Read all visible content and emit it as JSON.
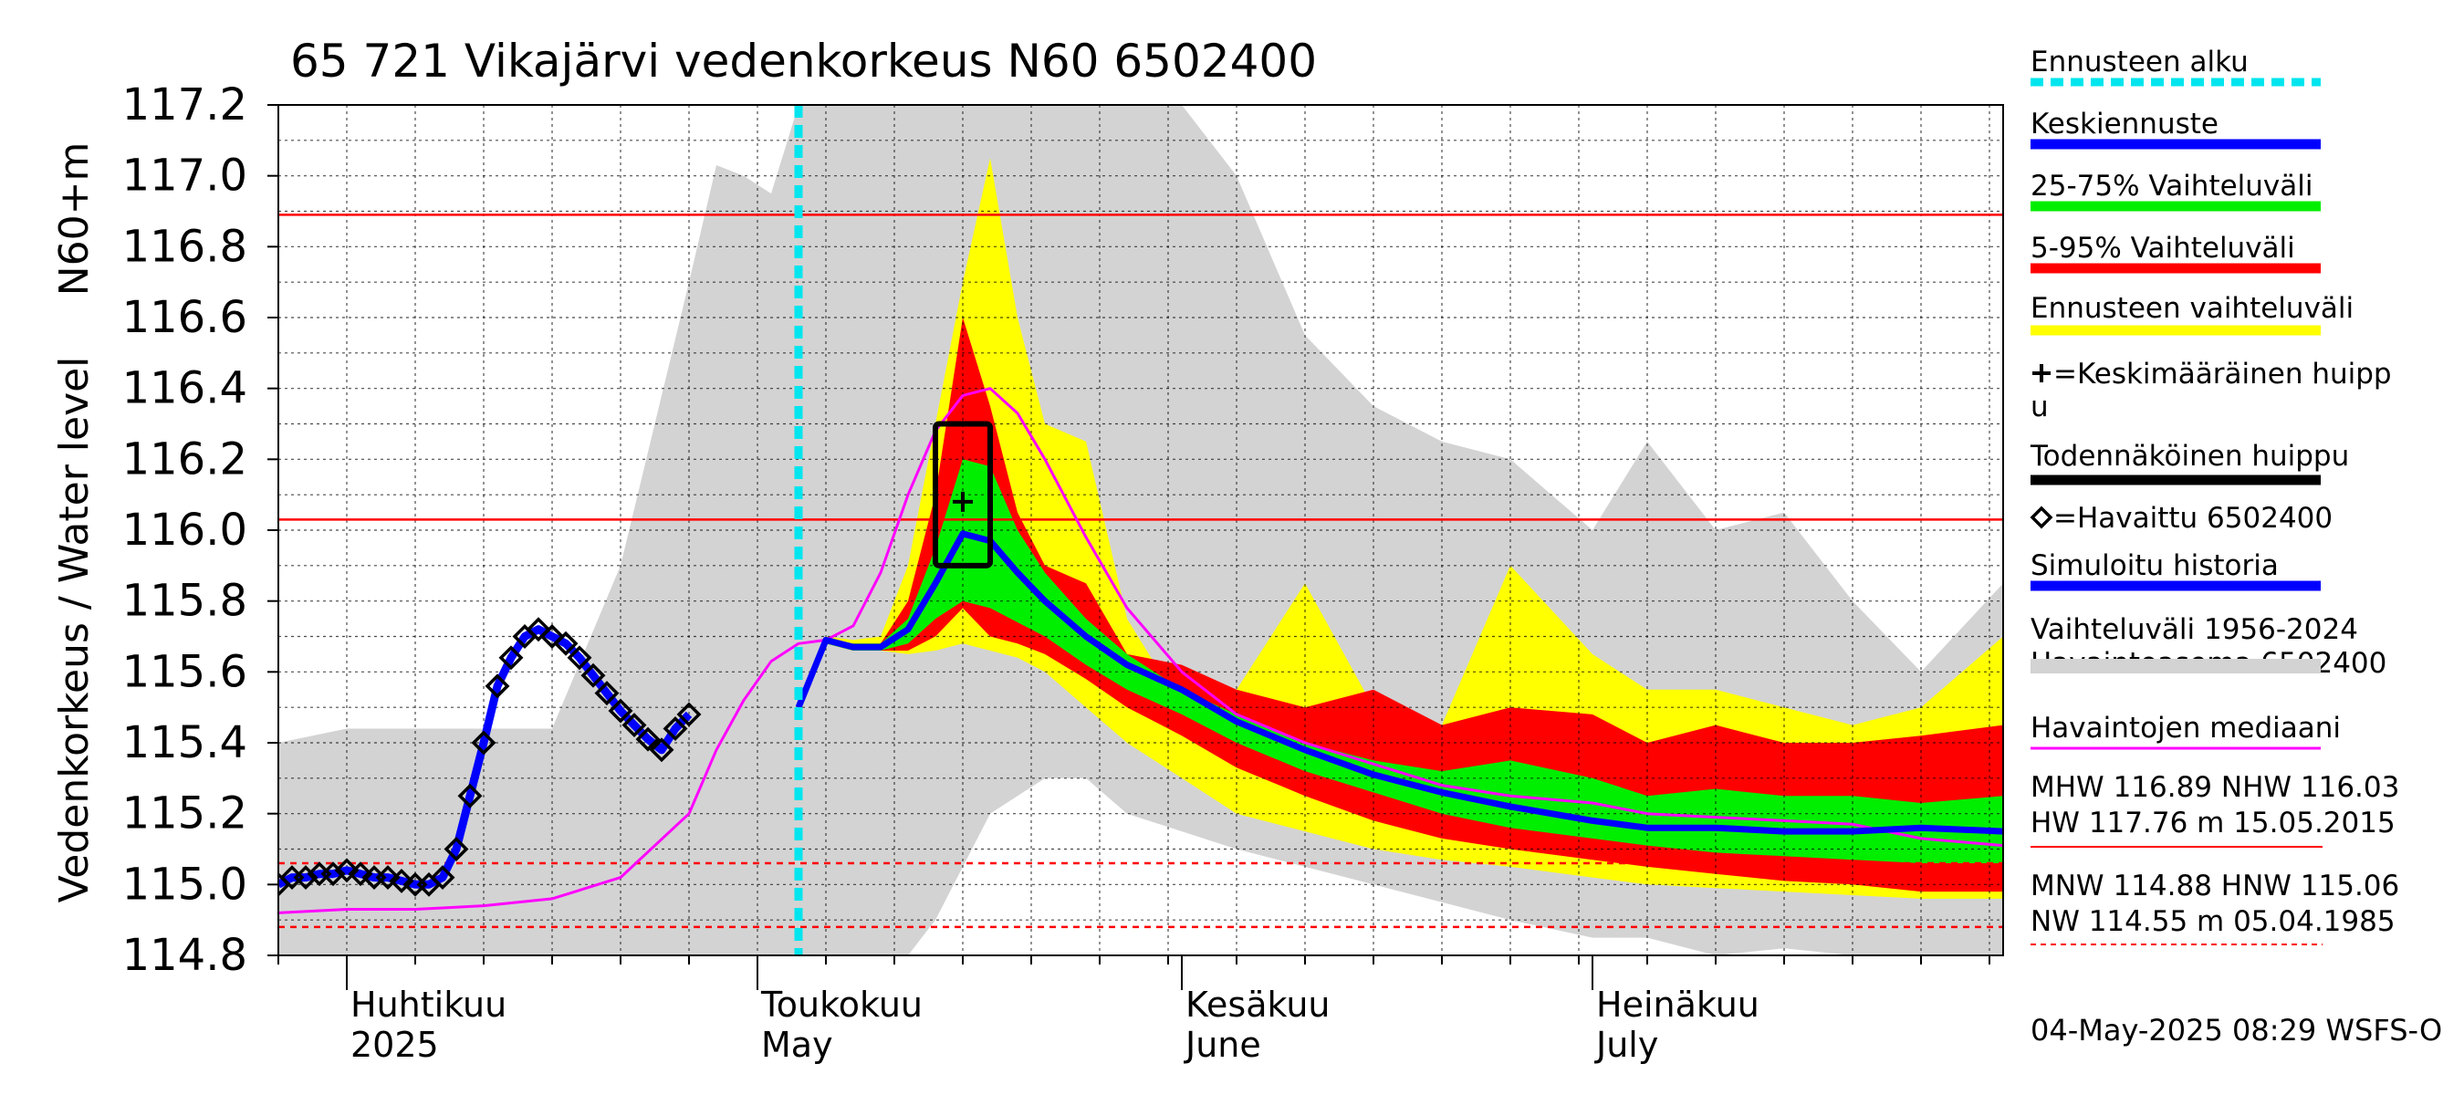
{
  "chart_data": {
    "type": "area",
    "title": "65 721 Vikajärvi vedenkorkeus N60 6502400",
    "ylabel_fi": "Vedenkorkeus / Water level",
    "ylabel_unit": "N60+m",
    "ylim": [
      114.8,
      117.2
    ],
    "y_ticks": [
      "114.8",
      "115.0",
      "115.2",
      "115.4",
      "115.6",
      "115.8",
      "116.0",
      "116.2",
      "116.4",
      "116.6",
      "116.8",
      "117.0",
      "117.2"
    ],
    "x_range": [
      "2025-03-27",
      "2025-07-31"
    ],
    "month_labels": [
      {
        "date": "2025-04-01",
        "fi": "Huhtikuu",
        "en": "2025"
      },
      {
        "date": "2025-05-01",
        "fi": "Toukokuu",
        "en": "May"
      },
      {
        "date": "2025-06-01",
        "fi": "Kesäkuu",
        "en": "June"
      },
      {
        "date": "2025-07-01",
        "fi": "Heinäkuu",
        "en": "July"
      }
    ],
    "forecast_start": "2025-05-04",
    "reference_lines": [
      {
        "name": "MHW",
        "value": 116.89,
        "style": "solid"
      },
      {
        "name": "NHW",
        "value": 116.03,
        "style": "solid"
      },
      {
        "name": "HNW",
        "value": 115.06,
        "style": "dashed"
      },
      {
        "name": "MNW",
        "value": 114.88,
        "style": "dashed"
      }
    ],
    "x_dates": [
      "2025-03-27",
      "2025-04-01",
      "2025-04-06",
      "2025-04-11",
      "2025-04-16",
      "2025-04-21",
      "2025-04-26",
      "2025-04-28",
      "2025-04-30",
      "2025-05-02",
      "2025-05-04",
      "2025-05-06",
      "2025-05-08",
      "2025-05-10",
      "2025-05-12",
      "2025-05-14",
      "2025-05-16",
      "2025-05-18",
      "2025-05-20",
      "2025-05-22",
      "2025-05-25",
      "2025-05-28",
      "2025-06-01",
      "2025-06-05",
      "2025-06-10",
      "2025-06-15",
      "2025-06-20",
      "2025-06-25",
      "2025-07-01",
      "2025-07-05",
      "2025-07-10",
      "2025-07-15",
      "2025-07-20",
      "2025-07-25",
      "2025-07-31"
    ],
    "series": [
      {
        "name": "Vaihteluväli 1956-2024 Havaintoasema 6502400 (max)",
        "color": "#d3d3d3",
        "values": [
          115.4,
          115.44,
          115.44,
          115.44,
          115.44,
          115.9,
          116.7,
          117.03,
          117.0,
          116.95,
          117.2,
          117.2,
          117.2,
          117.2,
          117.2,
          117.2,
          117.2,
          117.2,
          117.2,
          117.2,
          117.2,
          117.2,
          117.2,
          117.0,
          116.55,
          116.35,
          116.25,
          116.2,
          116.0,
          116.25,
          116.0,
          116.05,
          115.8,
          115.6,
          115.85
        ]
      },
      {
        "name": "Vaihteluväli 1956-2024 Havaintoasema 6502400 (min)",
        "color": "#d3d3d3",
        "values": [
          114.8,
          114.8,
          114.8,
          114.8,
          114.8,
          114.8,
          114.8,
          114.8,
          114.8,
          114.8,
          114.8,
          114.8,
          114.8,
          114.8,
          114.8,
          114.9,
          115.05,
          115.2,
          115.25,
          115.3,
          115.3,
          115.2,
          115.15,
          115.1,
          115.05,
          115.0,
          114.95,
          114.9,
          114.85,
          114.85,
          114.8,
          114.82,
          114.8,
          114.8,
          114.8
        ]
      },
      {
        "name": "Ennusteen vaihteluväli (max)",
        "color": "#ffff00",
        "values": [
          null,
          null,
          null,
          null,
          null,
          null,
          null,
          null,
          null,
          null,
          115.5,
          115.7,
          115.69,
          115.7,
          115.9,
          116.3,
          116.7,
          117.05,
          116.6,
          116.3,
          116.25,
          115.75,
          115.5,
          115.55,
          115.85,
          115.5,
          115.45,
          115.9,
          115.65,
          115.55,
          115.55,
          115.5,
          115.45,
          115.5,
          115.7
        ]
      },
      {
        "name": "Ennusteen vaihteluväli (min)",
        "color": "#ffff00",
        "values": [
          null,
          null,
          null,
          null,
          null,
          null,
          null,
          null,
          null,
          null,
          115.5,
          115.68,
          115.66,
          115.66,
          115.65,
          115.66,
          115.68,
          115.66,
          115.64,
          115.6,
          115.5,
          115.4,
          115.3,
          115.2,
          115.15,
          115.1,
          115.07,
          115.05,
          115.02,
          115.0,
          114.99,
          114.98,
          114.97,
          114.96,
          114.96
        ]
      },
      {
        "name": "5-95% Vaihteluväli (max)",
        "color": "#ff0000",
        "values": [
          null,
          null,
          null,
          null,
          null,
          null,
          null,
          null,
          null,
          null,
          115.5,
          115.69,
          115.68,
          115.68,
          115.8,
          116.1,
          116.6,
          116.35,
          116.05,
          115.9,
          115.85,
          115.65,
          115.62,
          115.55,
          115.5,
          115.55,
          115.45,
          115.5,
          115.48,
          115.4,
          115.45,
          115.4,
          115.4,
          115.42,
          115.45
        ]
      },
      {
        "name": "5-95% Vaihteluväli (min)",
        "color": "#ff0000",
        "values": [
          null,
          null,
          null,
          null,
          null,
          null,
          null,
          null,
          null,
          null,
          115.5,
          115.68,
          115.66,
          115.66,
          115.66,
          115.7,
          115.78,
          115.7,
          115.68,
          115.65,
          115.58,
          115.5,
          115.42,
          115.33,
          115.25,
          115.18,
          115.13,
          115.1,
          115.07,
          115.05,
          115.03,
          115.01,
          115.0,
          114.98,
          114.98
        ]
      },
      {
        "name": "25-75% Vaihteluväli (max)",
        "color": "#00ee00",
        "values": [
          null,
          null,
          null,
          null,
          null,
          null,
          null,
          null,
          null,
          null,
          115.5,
          115.69,
          115.68,
          115.68,
          115.75,
          115.95,
          116.2,
          116.18,
          116.0,
          115.88,
          115.75,
          115.65,
          115.55,
          115.48,
          115.4,
          115.35,
          115.32,
          115.35,
          115.3,
          115.25,
          115.27,
          115.25,
          115.25,
          115.23,
          115.25
        ]
      },
      {
        "name": "25-75% Vaihteluväli (min)",
        "color": "#00ee00",
        "values": [
          null,
          null,
          null,
          null,
          null,
          null,
          null,
          null,
          null,
          null,
          115.5,
          115.68,
          115.66,
          115.66,
          115.68,
          115.75,
          115.8,
          115.78,
          115.74,
          115.7,
          115.62,
          115.55,
          115.48,
          115.4,
          115.32,
          115.26,
          115.2,
          115.16,
          115.13,
          115.11,
          115.09,
          115.08,
          115.07,
          115.06,
          115.06
        ]
      },
      {
        "name": "Keskiennuste",
        "color": "#0000ff",
        "values": [
          null,
          null,
          null,
          null,
          null,
          null,
          null,
          null,
          null,
          null,
          115.5,
          115.69,
          115.67,
          115.67,
          115.72,
          115.85,
          115.99,
          115.97,
          115.88,
          115.8,
          115.7,
          115.62,
          115.55,
          115.46,
          115.38,
          115.31,
          115.26,
          115.22,
          115.18,
          115.16,
          115.16,
          115.15,
          115.15,
          115.16,
          115.15
        ]
      },
      {
        "name": "Havaintojen mediaani",
        "color": "#ff00ff",
        "values": [
          114.92,
          114.93,
          114.93,
          114.94,
          114.96,
          115.02,
          115.2,
          115.38,
          115.52,
          115.63,
          115.68,
          115.69,
          115.73,
          115.88,
          116.1,
          116.28,
          116.38,
          116.4,
          116.33,
          116.2,
          115.98,
          115.78,
          115.6,
          115.48,
          115.4,
          115.34,
          115.28,
          115.25,
          115.23,
          115.2,
          115.19,
          115.18,
          115.17,
          115.13,
          115.11
        ]
      }
    ],
    "observed_name": "=Havaittu 6502400",
    "observed_dates": [
      "2025-03-27",
      "2025-03-28",
      "2025-03-29",
      "2025-03-30",
      "2025-03-31",
      "2025-04-01",
      "2025-04-02",
      "2025-04-03",
      "2025-04-04",
      "2025-04-05",
      "2025-04-06",
      "2025-04-07",
      "2025-04-08",
      "2025-04-09",
      "2025-04-10",
      "2025-04-11",
      "2025-04-12",
      "2025-04-13",
      "2025-04-14",
      "2025-04-15",
      "2025-04-16",
      "2025-04-17",
      "2025-04-18",
      "2025-04-19",
      "2025-04-20",
      "2025-04-21",
      "2025-04-22",
      "2025-04-23",
      "2025-04-24",
      "2025-04-25",
      "2025-04-26",
      "2025-04-27",
      "2025-04-28",
      "2025-04-29",
      "2025-04-30"
    ],
    "observed_values": [
      115.0,
      115.02,
      115.02,
      115.03,
      115.03,
      115.04,
      115.03,
      115.02,
      115.02,
      115.01,
      115.0,
      115.0,
      115.02,
      115.1,
      115.25,
      115.4,
      115.56,
      115.64,
      115.7,
      115.72,
      115.7,
      115.68,
      115.64,
      115.59,
      115.54,
      115.49,
      115.45,
      115.41,
      115.38,
      115.44,
      115.48,
      null,
      null,
      null,
      null
    ],
    "simulated_name": "Simuloitu historia",
    "peak_box": {
      "date_start": "2025-05-14",
      "date_end": "2025-05-18",
      "low": 115.9,
      "high": 116.3
    },
    "mean_peak": {
      "date": "2025-05-16",
      "value": 116.08
    }
  },
  "legend": {
    "items": [
      {
        "label": "Ennusteen alku",
        "color": "#00e5ee",
        "style": "dotted"
      },
      {
        "label": "Keskiennuste",
        "color": "#0000ff",
        "style": "line"
      },
      {
        "label": "25-75% Vaihteluväli",
        "color": "#00ee00",
        "style": "line"
      },
      {
        "label": "5-95% Vaihteluväli",
        "color": "#ff0000",
        "style": "line"
      },
      {
        "label": "Ennusteen vaihteluväli",
        "color": "#ffff00",
        "style": "line"
      },
      {
        "label": "=Keskimääräinen huipp",
        "label2": "u",
        "color": "#000000",
        "style": "plus"
      },
      {
        "label": "Todennäköinen huippu",
        "color": "#000000",
        "style": "line"
      },
      {
        "label": "=Havaittu 6502400",
        "color": "#000000",
        "style": "diamond"
      },
      {
        "label": "Simuloitu historia",
        "color": "#0000ff",
        "style": "line"
      },
      {
        "label": "Vaihteluväli 1956-2024",
        "label2": " Havaintoasema 6502400",
        "color": "#d3d3d3",
        "style": "line"
      },
      {
        "label": "Havaintojen mediaani",
        "color": "#ff00ff",
        "style": "thin"
      }
    ],
    "stats_high_1": "MHW 116.89 NHW 116.03",
    "stats_high_2": "HW 117.76 m 15.05.2015",
    "stats_low_1": "MNW 114.88 HNW 115.06",
    "stats_low_2": "NW 114.55 m 05.04.1985"
  },
  "footer": "04-May-2025 08:29 WSFS-O"
}
